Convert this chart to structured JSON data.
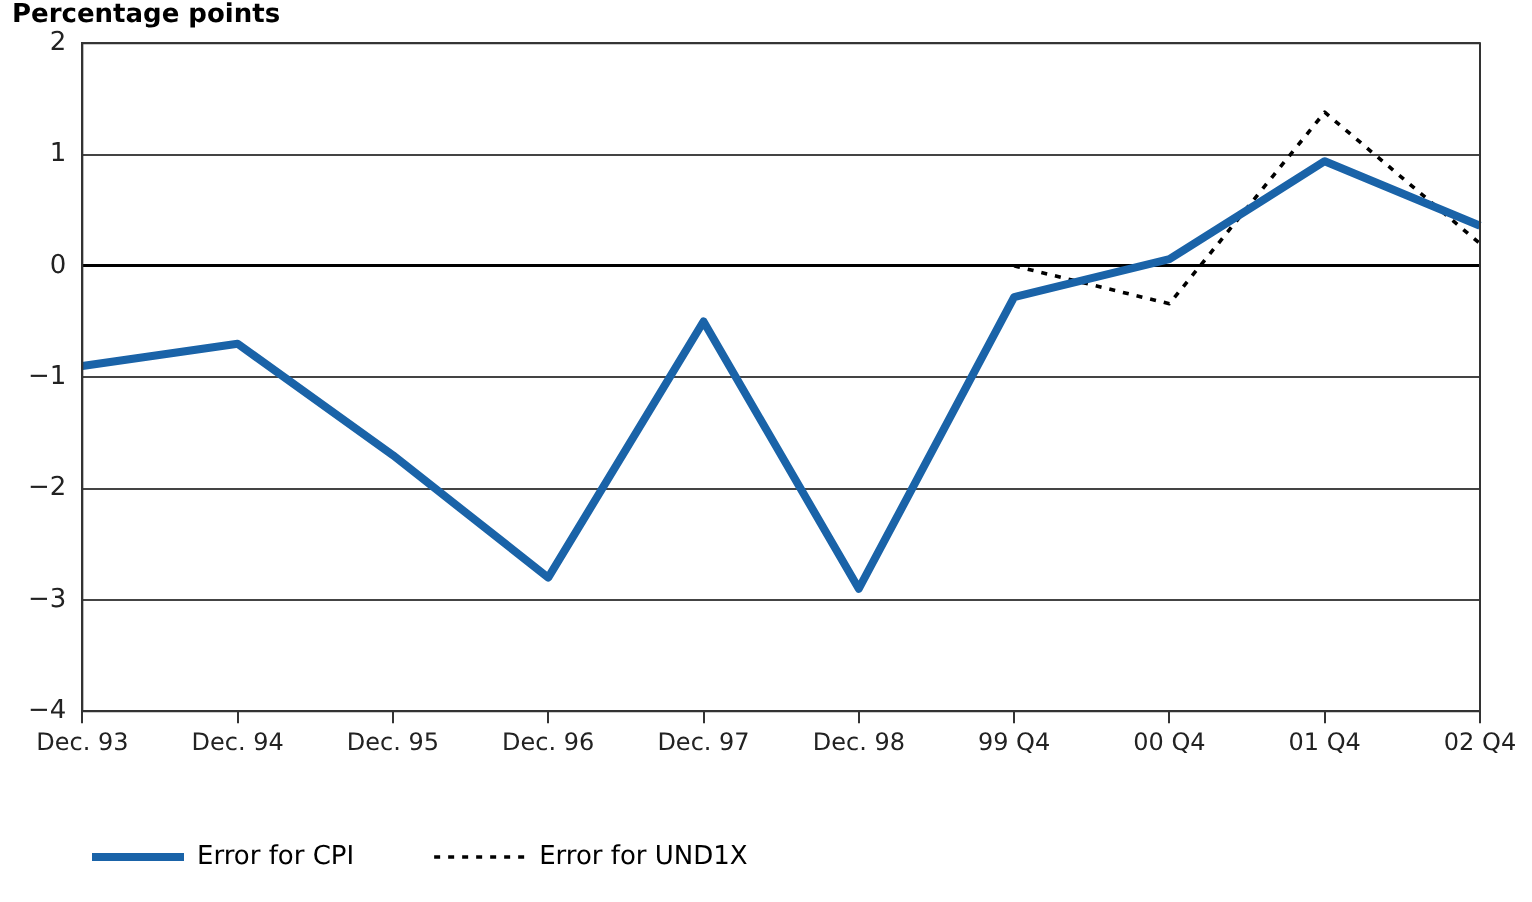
{
  "chart_data": {
    "type": "line",
    "ylabel": "Percentage points",
    "categories": [
      "Dec. 93",
      "Dec. 94",
      "Dec. 95",
      "Dec. 96",
      "Dec. 97",
      "Dec. 98",
      "99 Q4",
      "00 Q4",
      "01 Q4",
      "02 Q4"
    ],
    "series": [
      {
        "name": "Error for CPI",
        "color": "#1a63a8",
        "line_style": "solid",
        "values": [
          -0.9,
          -0.7,
          -1.7,
          -2.8,
          -0.5,
          -2.9,
          -0.28,
          0.06,
          0.94,
          0.36
        ]
      },
      {
        "name": "Error for UND1X",
        "color": "#000000",
        "line_style": "dotted",
        "values": [
          null,
          null,
          null,
          null,
          null,
          null,
          0,
          -0.34,
          1.38,
          0.2
        ]
      }
    ],
    "ylim": [
      -4,
      2
    ],
    "yticks": [
      {
        "value": -4,
        "label": "−4"
      },
      {
        "value": -3,
        "label": "−3"
      },
      {
        "value": -2,
        "label": "−2"
      },
      {
        "value": -1,
        "label": "−1"
      },
      0,
      1,
      2
    ],
    "grid": "y",
    "legend": "bottom",
    "marker": "none"
  }
}
